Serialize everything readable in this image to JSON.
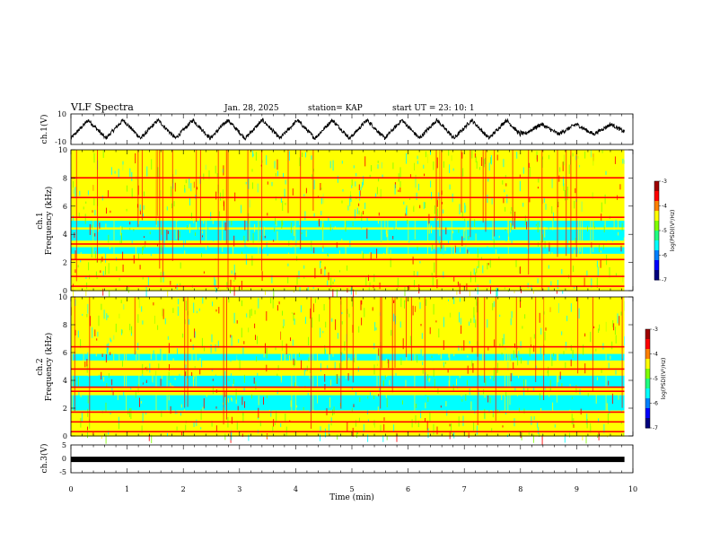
{
  "header": {
    "title": "VLF Spectra",
    "date": "Jan. 28, 2025",
    "station": "station= KAP",
    "start": "start  UT =   23: 10: 1"
  },
  "chart_data": [
    {
      "id": "ch1-waveform",
      "type": "line",
      "ylabel": "ch.1(V)",
      "ylim": [
        -10,
        10
      ],
      "y_ticks": [
        "10",
        "-10"
      ],
      "xlim": [
        0,
        10
      ],
      "approx_period_min": 0.62,
      "amplitude_v": 6,
      "x_end_min": 9.85
    },
    {
      "id": "ch1-spectrogram",
      "type": "heatmap",
      "ylabel": "ch.1\nFrequency (kHz)",
      "ylim": [
        0,
        10
      ],
      "y_ticks": [
        "0",
        "2",
        "4",
        "6",
        "8",
        "10"
      ],
      "xlim": [
        0,
        10
      ],
      "x_end_min": 9.85,
      "colorbar": {
        "label": "log(PSD)(V²/Hz)",
        "range": [
          -7,
          -3
        ],
        "ticks": [
          "-3",
          "-4",
          "-5",
          "-6",
          "-7"
        ]
      },
      "dominant_lines_khz": [
        0.3,
        1.0,
        2.2,
        3.3,
        5.2,
        6.6,
        8.0
      ],
      "low_power_bands_khz": [
        [
          2.6,
          3.2
        ],
        [
          3.6,
          4.4
        ],
        [
          4.6,
          5.0
        ]
      ]
    },
    {
      "id": "ch2-spectrogram",
      "type": "heatmap",
      "ylabel": "ch.2\nFrequency (kHz)",
      "ylim": [
        0,
        10
      ],
      "y_ticks": [
        "0",
        "2",
        "4",
        "6",
        "8",
        "10"
      ],
      "xlim": [
        0,
        10
      ],
      "x_end_min": 9.85,
      "colorbar": {
        "label": "log(PSD)(V²/Hz)",
        "range": [
          -7,
          -3
        ],
        "ticks": [
          "-3",
          "-4",
          "-5",
          "-6",
          "-7"
        ]
      },
      "dominant_lines_khz": [
        0.3,
        1.0,
        1.7,
        3.2,
        3.5,
        4.8,
        6.4
      ],
      "low_power_bands_khz": [
        [
          1.9,
          3.0
        ],
        [
          3.6,
          4.4
        ],
        [
          5.4,
          6.0
        ]
      ]
    },
    {
      "id": "ch3-waveform",
      "type": "line",
      "ylabel": "ch.3(V)",
      "ylim": [
        -5,
        5
      ],
      "y_ticks": [
        "5",
        "0",
        "-5"
      ],
      "xlim": [
        0,
        10
      ],
      "value_v": -0.2,
      "x_end_min": 9.85
    }
  ],
  "x_axis": {
    "label": "Time  (min)",
    "ticks": [
      "0",
      "1",
      "2",
      "3",
      "4",
      "5",
      "6",
      "7",
      "8",
      "9",
      "10"
    ]
  },
  "colors": {
    "scale": [
      "#00007f",
      "#0000ff",
      "#0080ff",
      "#00ffff",
      "#20ff80",
      "#80ff00",
      "#ffff00",
      "#ff8000",
      "#ff0000",
      "#a00000"
    ]
  }
}
